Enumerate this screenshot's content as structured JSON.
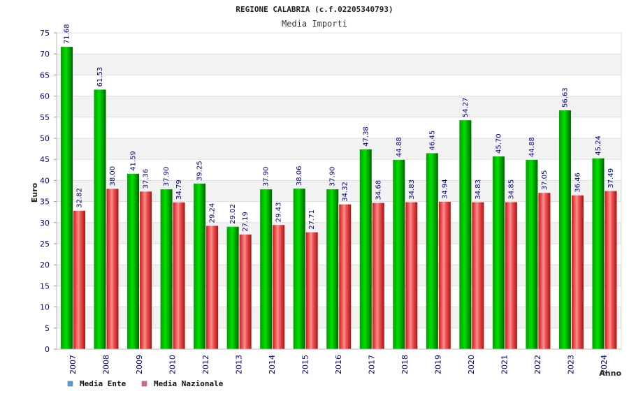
{
  "chart_data": {
    "type": "bar",
    "title": "REGIONE CALABRIA (c.f.02205340793)",
    "subtitle": "Media Importi",
    "xlabel": "Anno",
    "ylabel": "Euro",
    "ylim": [
      0,
      75
    ],
    "ytick_step": 5,
    "grid": true,
    "legend_position": "bottom-left",
    "categories": [
      "2007",
      "2008",
      "2009",
      "2010",
      "2012",
      "2013",
      "2014",
      "2015",
      "2016",
      "2017",
      "2018",
      "2019",
      "2020",
      "2021",
      "2022",
      "2023",
      "2024"
    ],
    "series": [
      {
        "name": "Media Ente",
        "color": "#00aa00",
        "legend_color": "#5b9bd5",
        "values": [
          71.68,
          61.53,
          41.59,
          37.9,
          39.25,
          29.02,
          37.9,
          38.06,
          37.9,
          47.38,
          44.88,
          46.45,
          54.27,
          45.7,
          44.88,
          56.63,
          45.24
        ],
        "labels": [
          "71.68",
          "61.53",
          "41.59",
          "37.90",
          "39.25",
          "29.02",
          "37.90",
          "38.06",
          "37.90",
          "47.38",
          "44.88",
          "46.45",
          "54.27",
          "45.70",
          "44.88",
          "56.63",
          "45.24"
        ]
      },
      {
        "name": "Media Nazionale",
        "color": "#e83a3a",
        "legend_color": "#e0609a",
        "values": [
          32.82,
          38.0,
          37.36,
          34.79,
          29.24,
          27.19,
          29.43,
          27.71,
          34.32,
          34.68,
          34.83,
          34.94,
          34.83,
          34.85,
          37.05,
          36.46,
          37.49
        ],
        "labels": [
          "32.82",
          "38.00",
          "37.36",
          "34.79",
          "29.24",
          "27.19",
          "29.43",
          "27.71",
          "34.32",
          "34.68",
          "34.83",
          "34.94",
          "34.83",
          "34.85",
          "37.05",
          "36.46",
          "37.49"
        ]
      }
    ]
  }
}
